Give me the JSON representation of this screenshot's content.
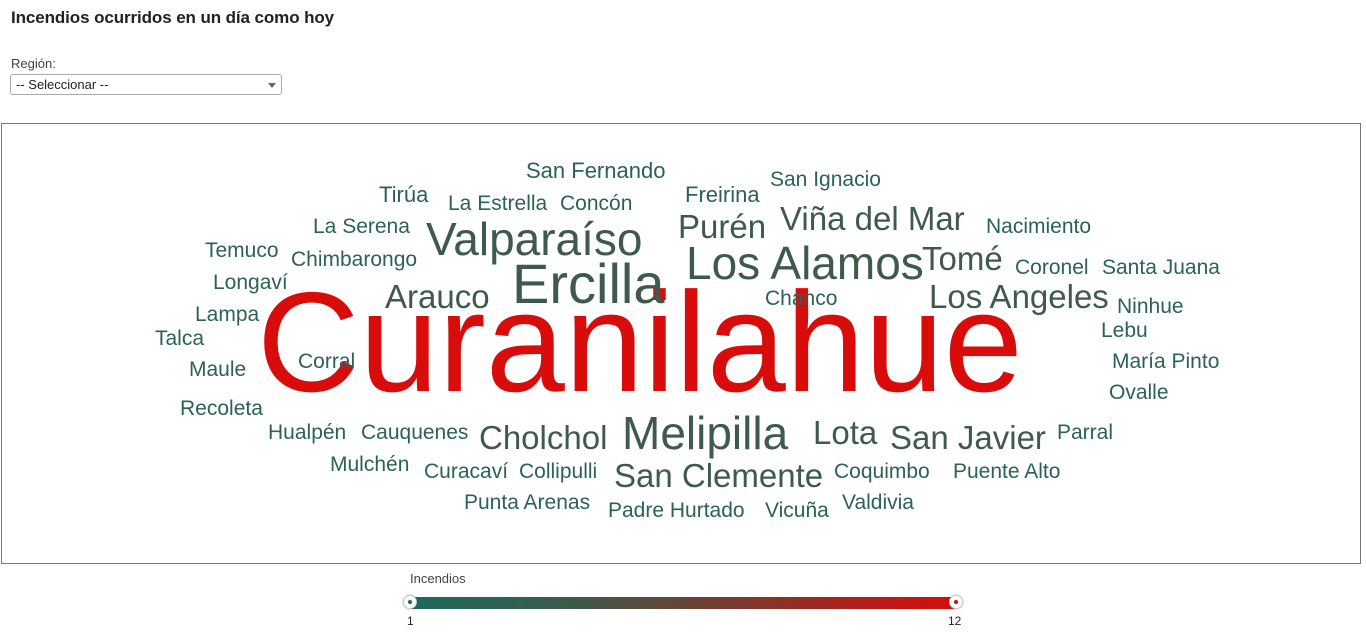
{
  "header": {
    "title": "Incendios ocurridos en un día como hoy"
  },
  "filter": {
    "label": "Región:",
    "selected": "-- Seleccionar --"
  },
  "colors": {
    "low": "#1b6b5c",
    "high": "#d90c0c"
  },
  "legend": {
    "title": "Incendios",
    "min_label": "1",
    "max_label": "12"
  },
  "chart_data": {
    "type": "wordcloud",
    "title": "",
    "color_scale": {
      "min": 1,
      "max": 12
    },
    "words": [
      {
        "text": "Curanilahue",
        "value": 12
      },
      {
        "text": "Ercilla",
        "value": 5
      },
      {
        "text": "Los Alamos",
        "value": 5
      },
      {
        "text": "Melipilla",
        "value": 4
      },
      {
        "text": "Valparaíso",
        "value": 4
      },
      {
        "text": "Arauco",
        "value": 3
      },
      {
        "text": "Cholchol",
        "value": 3
      },
      {
        "text": "San Clemente",
        "value": 3
      },
      {
        "text": "San Javier",
        "value": 3
      },
      {
        "text": "Lota",
        "value": 3
      },
      {
        "text": "Los Angeles",
        "value": 3
      },
      {
        "text": "Tomé",
        "value": 3
      },
      {
        "text": "Viña del Mar",
        "value": 3
      },
      {
        "text": "Purén",
        "value": 3
      },
      {
        "text": "San Fernando",
        "value": 2
      },
      {
        "text": "San Ignacio",
        "value": 2
      },
      {
        "text": "Freirina",
        "value": 2
      },
      {
        "text": "Tirúa",
        "value": 2
      },
      {
        "text": "La Estrella",
        "value": 2
      },
      {
        "text": "Concón",
        "value": 2
      },
      {
        "text": "La Serena",
        "value": 2
      },
      {
        "text": "Nacimiento",
        "value": 2
      },
      {
        "text": "Temuco",
        "value": 2
      },
      {
        "text": "Chimbarongo",
        "value": 2
      },
      {
        "text": "Coronel",
        "value": 2
      },
      {
        "text": "Santa Juana",
        "value": 2
      },
      {
        "text": "Longaví",
        "value": 2
      },
      {
        "text": "Chanco",
        "value": 2
      },
      {
        "text": "Ninhue",
        "value": 2
      },
      {
        "text": "Lampa",
        "value": 2
      },
      {
        "text": "Lebu",
        "value": 2
      },
      {
        "text": "Talca",
        "value": 2
      },
      {
        "text": "Corral",
        "value": 2
      },
      {
        "text": "María Pinto",
        "value": 2
      },
      {
        "text": "Maule",
        "value": 2
      },
      {
        "text": "Ovalle",
        "value": 2
      },
      {
        "text": "Recoleta",
        "value": 2
      },
      {
        "text": "Hualpén",
        "value": 2
      },
      {
        "text": "Cauquenes",
        "value": 2
      },
      {
        "text": "Parral",
        "value": 2
      },
      {
        "text": "Mulchén",
        "value": 2
      },
      {
        "text": "Curacaví",
        "value": 2
      },
      {
        "text": "Collipulli",
        "value": 2
      },
      {
        "text": "Coquimbo",
        "value": 2
      },
      {
        "text": "Puente Alto",
        "value": 2
      },
      {
        "text": "Punta Arenas",
        "value": 2
      },
      {
        "text": "Padre Hurtado",
        "value": 2
      },
      {
        "text": "Vicuña",
        "value": 2
      },
      {
        "text": "Valdivia",
        "value": 2
      }
    ]
  }
}
